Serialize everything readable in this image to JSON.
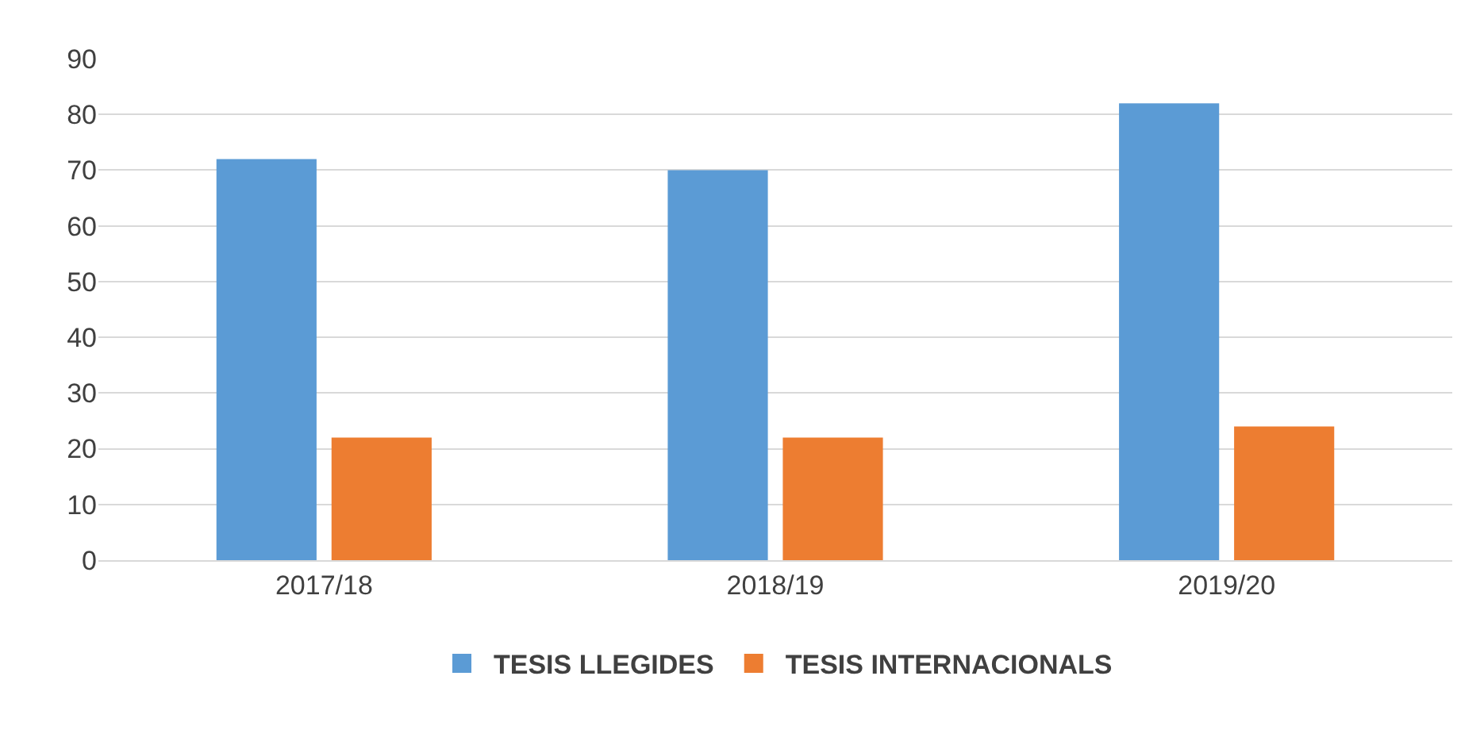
{
  "chart_data": {
    "type": "bar",
    "categories": [
      "2017/18",
      "2018/19",
      "2019/20"
    ],
    "series": [
      {
        "name": "TESIS LLEGIDES",
        "color": "#5b9bd5",
        "values": [
          72,
          70,
          82
        ]
      },
      {
        "name": "TESIS INTERNACIONALS",
        "color": "#ed7d31",
        "values": [
          22,
          22,
          24
        ]
      }
    ],
    "ylim": [
      0,
      90
    ],
    "yticks": [
      0,
      10,
      20,
      30,
      40,
      50,
      60,
      70,
      80,
      90
    ],
    "grid": "y",
    "legend": "bottom"
  }
}
